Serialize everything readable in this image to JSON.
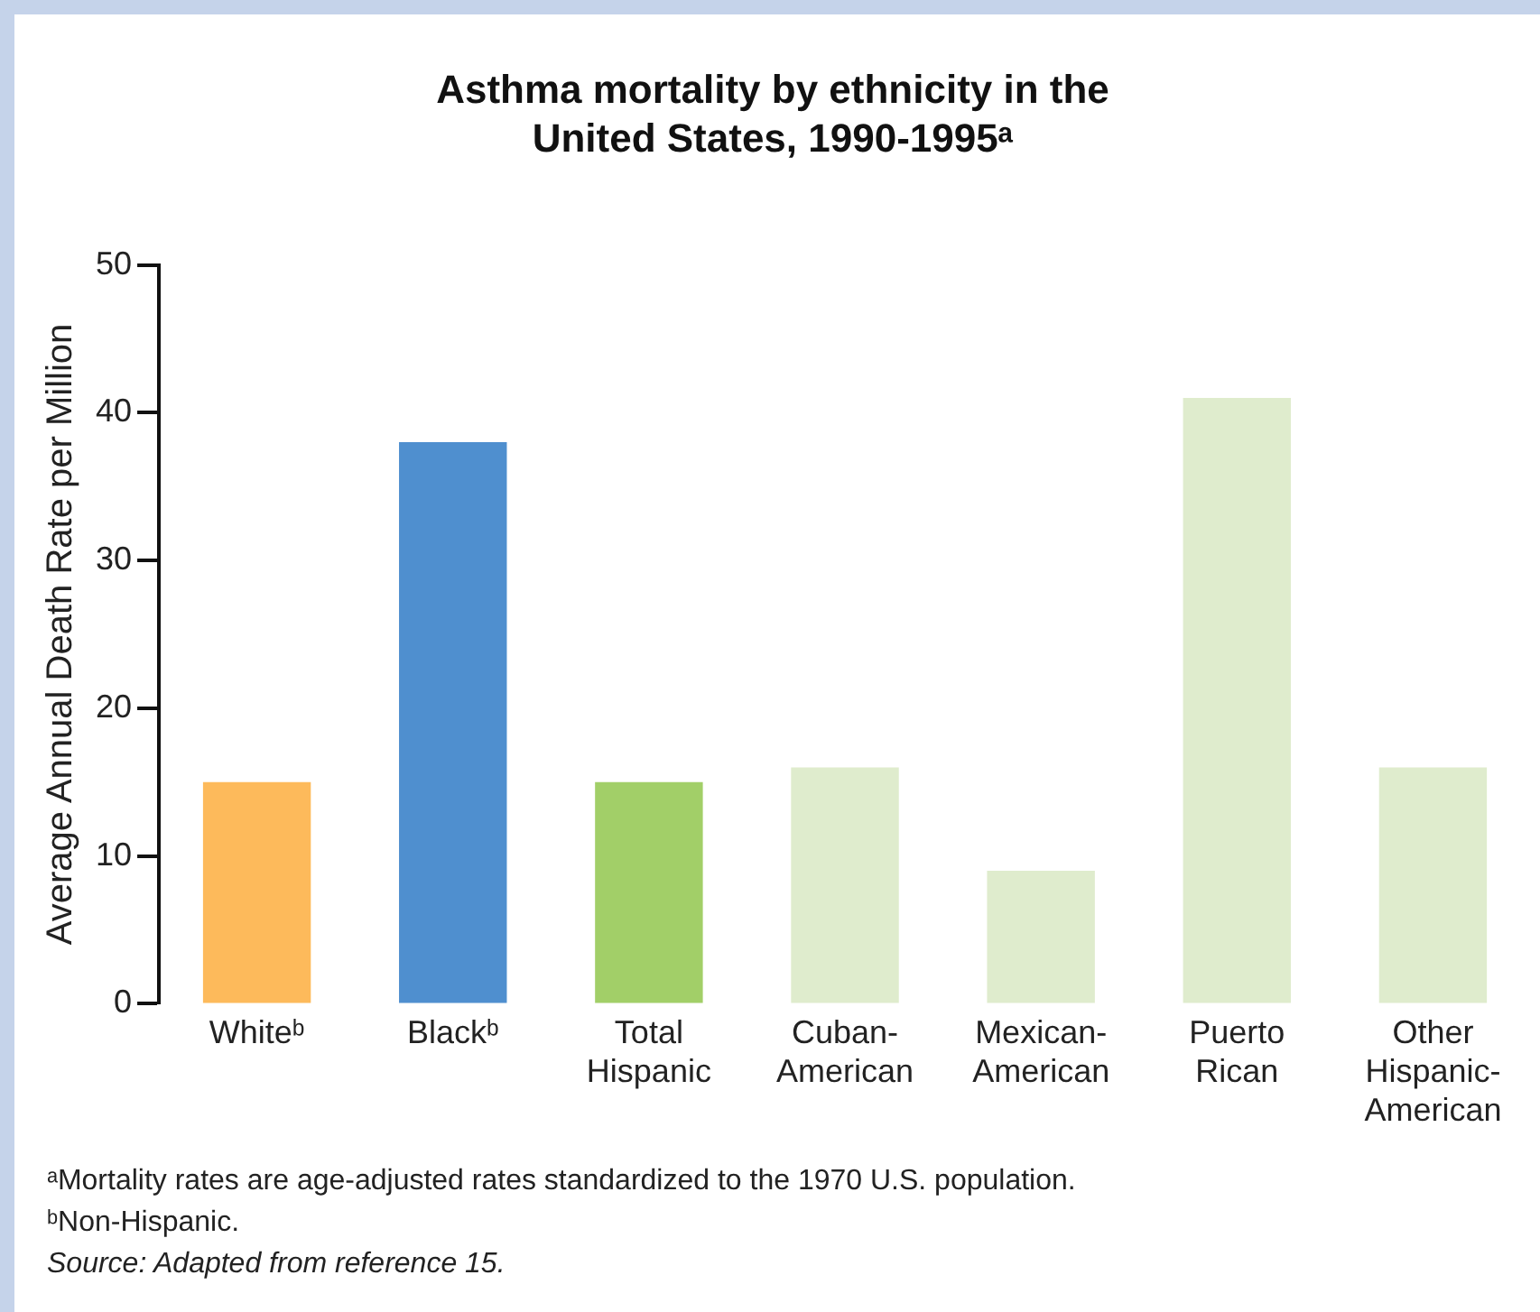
{
  "chart_data": {
    "type": "bar",
    "title": "Asthma mortality by ethnicity in the United States, 1990-1995ᵃ",
    "ylabel": "Average Annual Death Rate per Million",
    "categories": [
      "Whiteᵇ",
      "Blackᵇ",
      "Total Hispanic",
      "Cuban-American",
      "Mexican-American",
      "Puerto Rican",
      "Other Hispanic-American"
    ],
    "values": [
      15,
      38,
      15,
      16,
      9,
      41,
      16
    ],
    "colors": [
      "#fdba5b",
      "#4f8fcf",
      "#a2cf68",
      "#dfeccd",
      "#dfeccd",
      "#dfeccd",
      "#dfeccd"
    ],
    "ylim": [
      0,
      50
    ],
    "yticks": [
      0,
      10,
      20,
      30,
      40,
      50
    ],
    "grid": false,
    "legend": false,
    "annotations": [
      "ᵃMortality rates are age-adjusted rates standardized to the 1970 U.S. population.",
      "ᵇNon-Hispanic.",
      "Source: Adapted from reference 15."
    ]
  }
}
